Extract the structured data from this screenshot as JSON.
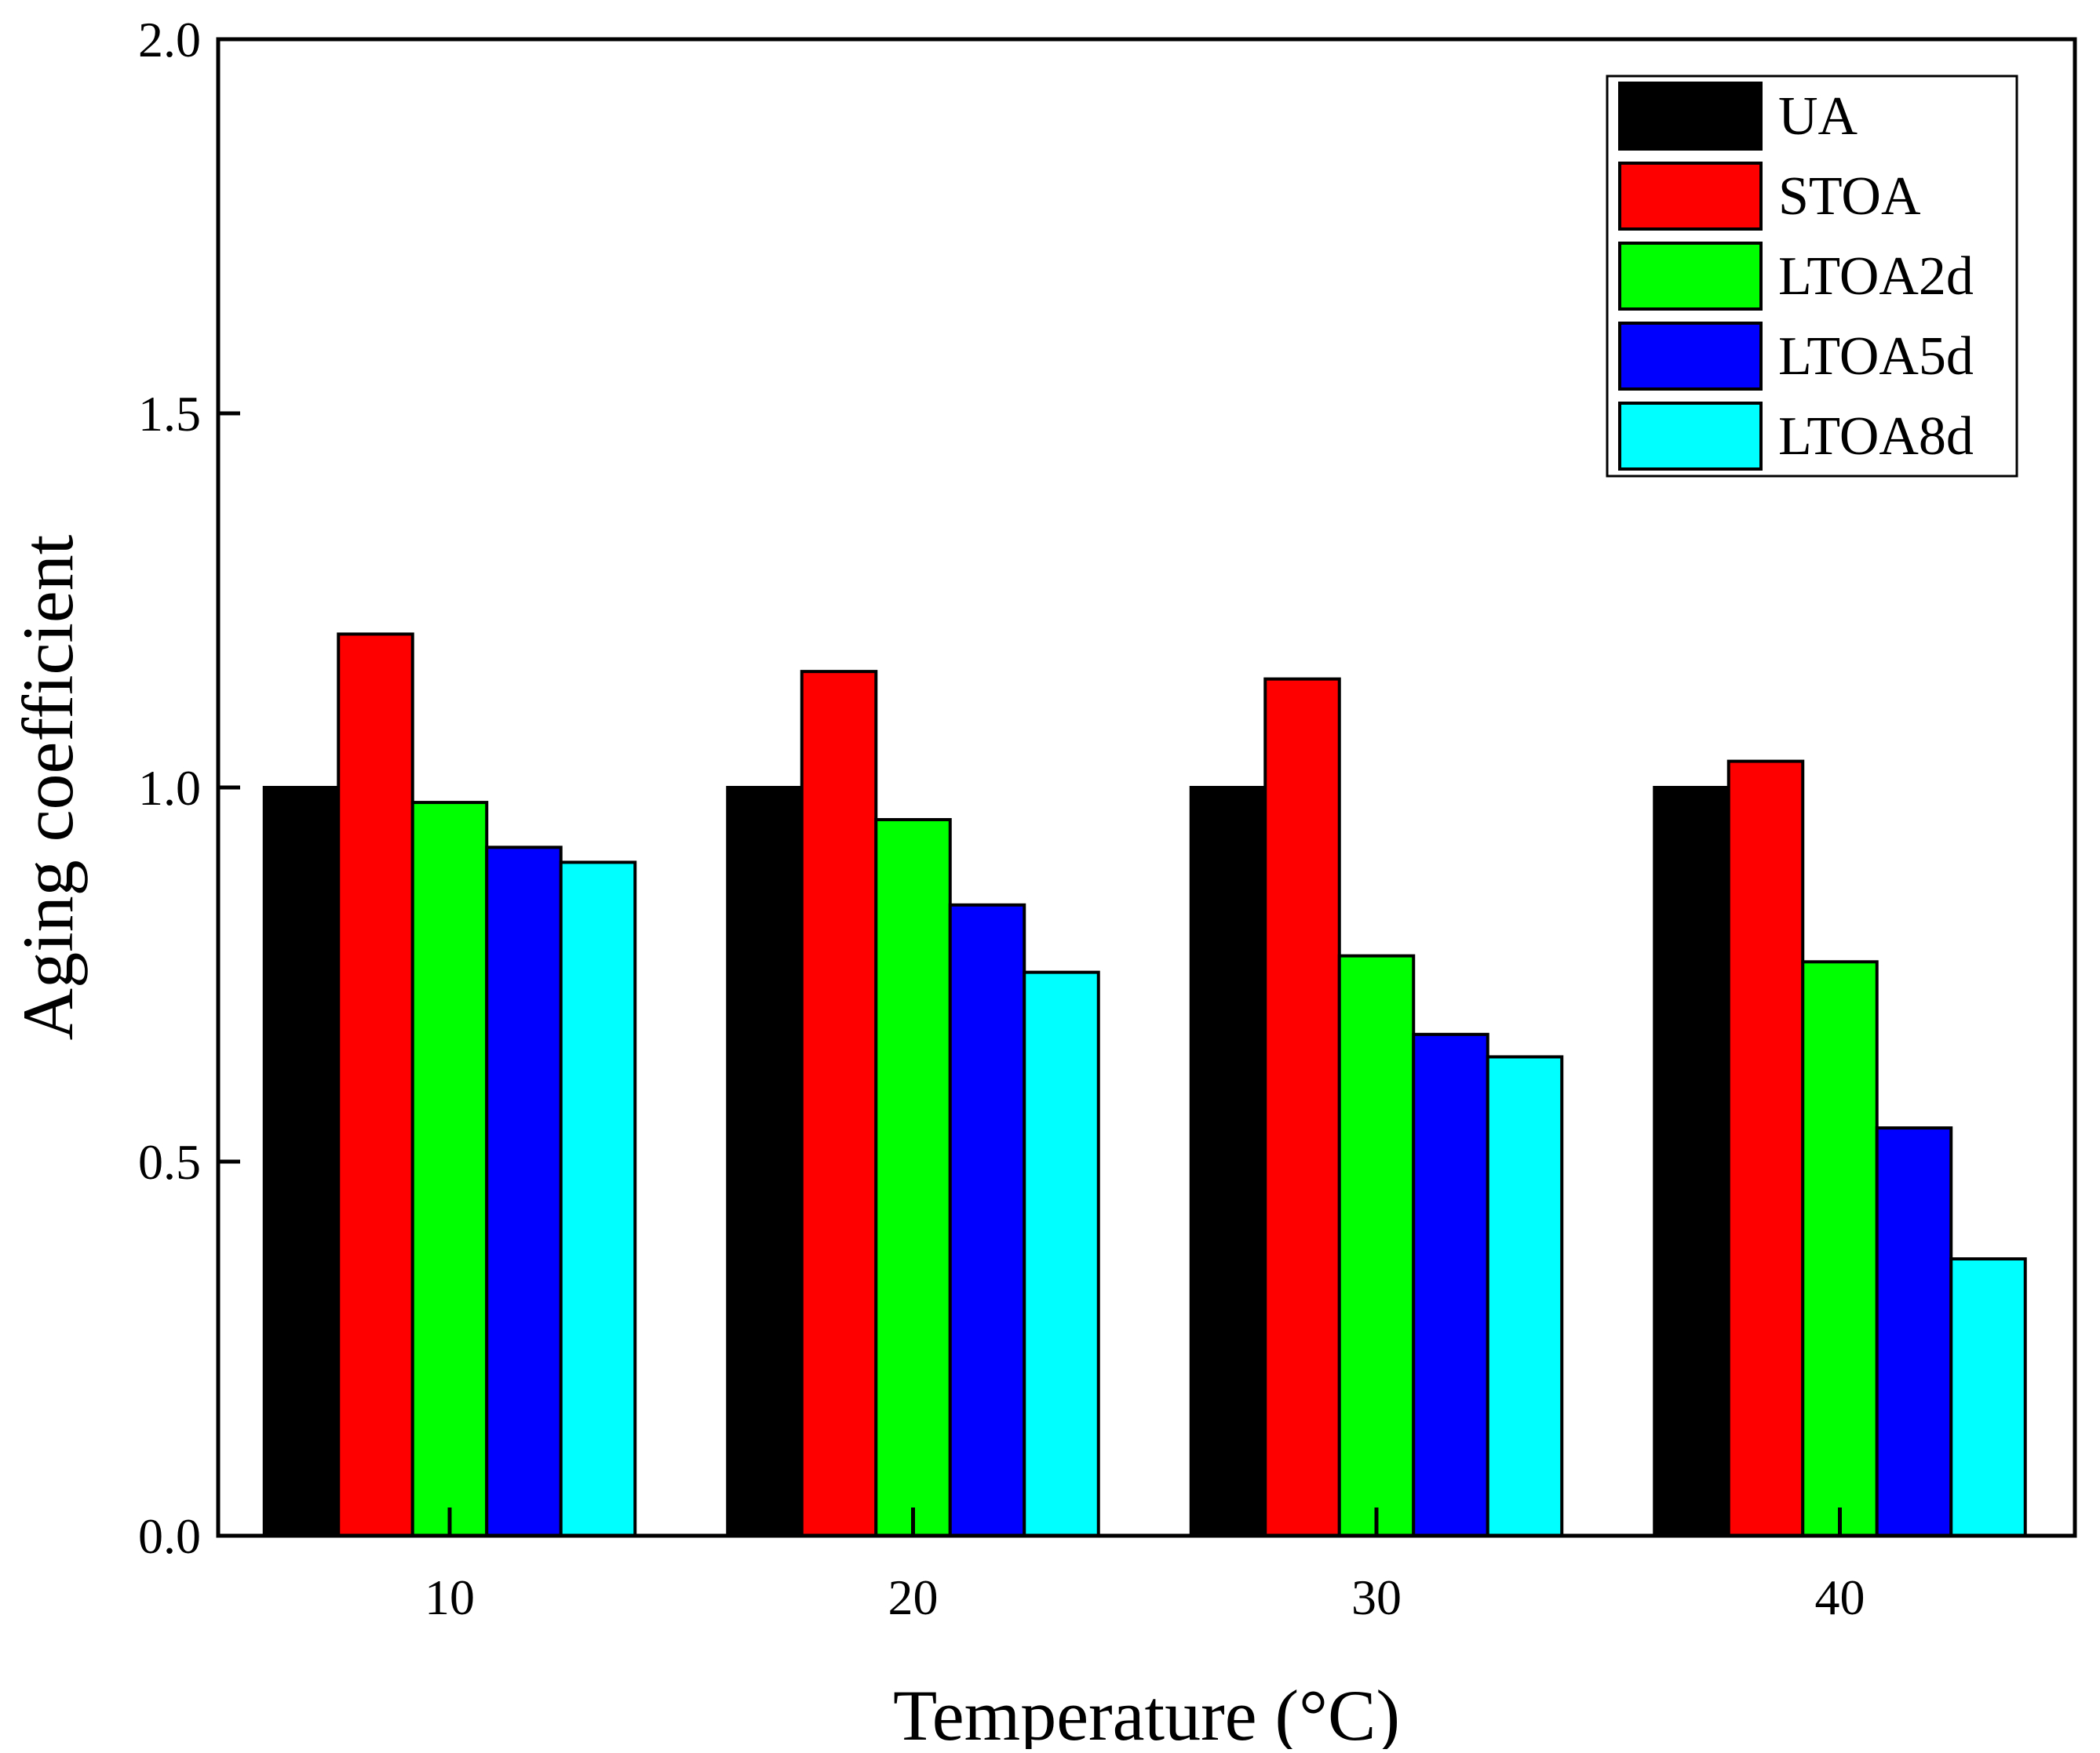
{
  "chart_data": {
    "type": "bar",
    "title": "",
    "xlabel": "Temperature (°C)",
    "ylabel": "Aging coefficient",
    "categories": [
      "10",
      "20",
      "30",
      "40"
    ],
    "ylim": [
      0.0,
      2.0
    ],
    "yticks": [
      0.0,
      0.5,
      1.0,
      1.5,
      2.0
    ],
    "ytick_labels": [
      "0.0",
      "0.5",
      "1.0",
      "1.5",
      "2.0"
    ],
    "grid": false,
    "legend_position": "top-right",
    "series": [
      {
        "name": "UA",
        "color": "#000000",
        "values": [
          1.0,
          1.0,
          1.0,
          1.0
        ]
      },
      {
        "name": "STOA",
        "color": "#ff0000",
        "values": [
          1.205,
          1.155,
          1.145,
          1.035
        ]
      },
      {
        "name": "LTOA2d",
        "color": "#00ff00",
        "values": [
          0.98,
          0.957,
          0.775,
          0.767
        ]
      },
      {
        "name": "LTOA5d",
        "color": "#0000ff",
        "values": [
          0.92,
          0.843,
          0.67,
          0.545
        ]
      },
      {
        "name": "LTOA8d",
        "color": "#00ffff",
        "values": [
          0.9,
          0.753,
          0.64,
          0.37
        ]
      }
    ]
  }
}
